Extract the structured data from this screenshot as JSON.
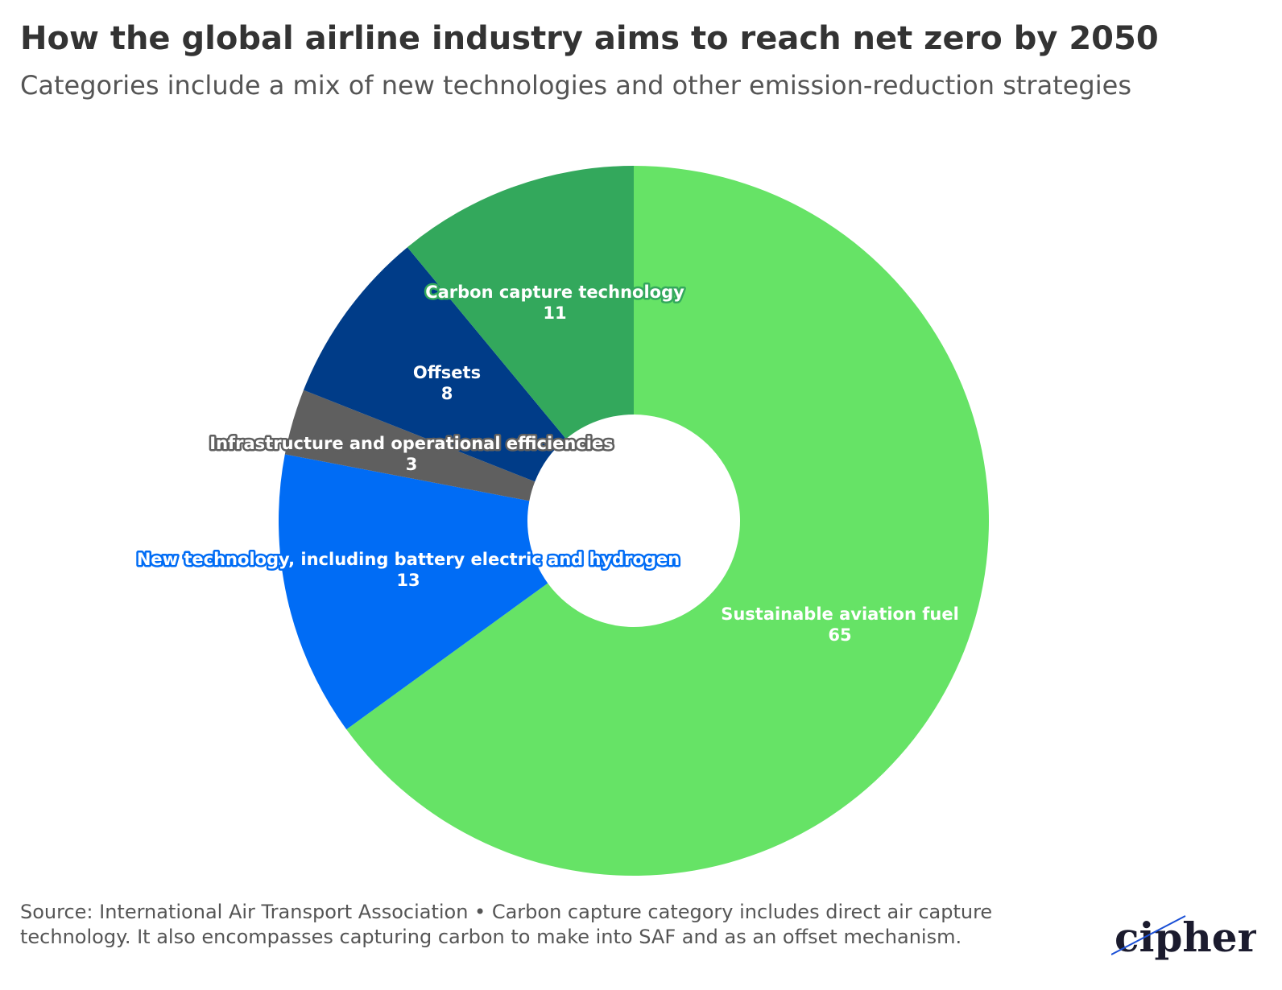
{
  "header": {
    "title": "How the global airline industry aims to reach net zero by 2050",
    "subtitle": "Categories include a mix of new technologies and other emission-reduction strategies"
  },
  "chart_data": {
    "type": "pie",
    "variant": "donut",
    "title": "How the global airline industry aims to reach net zero by 2050",
    "subtitle": "Categories include a mix of new technologies and other emission-reduction strategies",
    "start": "12 o'clock, clockwise",
    "slices": [
      {
        "label": "Sustainable aviation fuel",
        "value": 65,
        "color": "#66e366",
        "halo": "#66e366"
      },
      {
        "label": "New technology, including battery electric and hydrogen",
        "value": 13,
        "color": "#006cf5",
        "halo": "#006cf5"
      },
      {
        "label": "Infrastructure and operational efficiencies",
        "value": 3,
        "color": "#5f5f5f",
        "halo": "#5f5f5f"
      },
      {
        "label": "Offsets",
        "value": 8,
        "color": "#003c88",
        "halo": "#003c88"
      },
      {
        "label": "Carbon capture technology",
        "value": 11,
        "color": "#33a85c",
        "halo": "#33a85c"
      }
    ]
  },
  "footer": {
    "note": "Source: International Air Transport Association • Carbon capture category includes direct air capture technology. It also encompasses capturing carbon to make into SAF and as an offset mechanism.",
    "logo": "cipher"
  }
}
